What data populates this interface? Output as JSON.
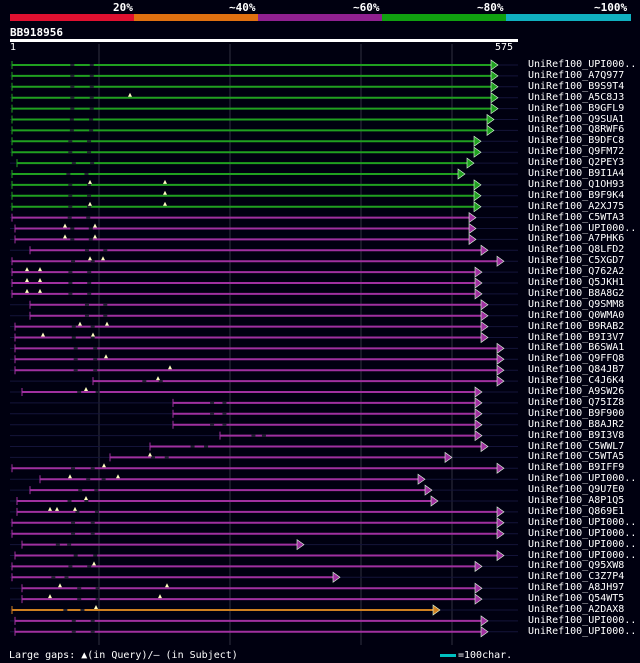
{
  "legend": {
    "labels": [
      "20%",
      "~40%",
      "~60%",
      "~80%",
      "~100%"
    ],
    "colors": [
      "#e01030",
      "#e07010",
      "#902090",
      "#10a010",
      "#10b0c0"
    ]
  },
  "query": {
    "title": "BB918956",
    "start": "1",
    "end": "575"
  },
  "hits": [
    {
      "label": "UniRef100_UPI000..",
      "color": "#20a020",
      "from": 12,
      "to": 498,
      "marks": []
    },
    {
      "label": "UniRef100_A7Q977",
      "color": "#20a020",
      "from": 12,
      "to": 498,
      "marks": []
    },
    {
      "label": "UniRef100_B9S9T4",
      "color": "#20a020",
      "from": 12,
      "to": 498,
      "marks": []
    },
    {
      "label": "UniRef100_A5C8J3",
      "color": "#20a020",
      "from": 12,
      "to": 498,
      "marks": [
        130
      ]
    },
    {
      "label": "UniRef100_B9GFL9",
      "color": "#20a020",
      "from": 12,
      "to": 498,
      "marks": []
    },
    {
      "label": "UniRef100_Q9SUA1",
      "color": "#20a020",
      "from": 12,
      "to": 494,
      "marks": []
    },
    {
      "label": "UniRef100_Q8RWF6",
      "color": "#20a020",
      "from": 12,
      "to": 494,
      "marks": []
    },
    {
      "label": "UniRef100_B9DFC8",
      "color": "#20a020",
      "from": 12,
      "to": 481,
      "marks": []
    },
    {
      "label": "UniRef100_Q9FM72",
      "color": "#20a020",
      "from": 12,
      "to": 481,
      "marks": []
    },
    {
      "label": "UniRef100_Q2PEY3",
      "color": "#20a020",
      "from": 17,
      "to": 474,
      "marks": []
    },
    {
      "label": "UniRef100_B9I1A4",
      "color": "#20a020",
      "from": 12,
      "to": 465,
      "marks": []
    },
    {
      "label": "UniRef100_Q1OH93",
      "color": "#20a020",
      "from": 12,
      "to": 481,
      "marks": [
        90,
        165
      ]
    },
    {
      "label": "UniRef100_B9F9K4",
      "color": "#20a020",
      "from": 12,
      "to": 481,
      "marks": [
        165
      ]
    },
    {
      "label": "UniRef100_A2XJ75",
      "color": "#20a020",
      "from": 12,
      "to": 481,
      "marks": [
        90,
        165
      ]
    },
    {
      "label": "UniRef100_C5WTA3",
      "color": "#a030a0",
      "from": 12,
      "to": 476,
      "marks": []
    },
    {
      "label": "UniRef100_UPI000..",
      "color": "#a030a0",
      "from": 15,
      "to": 476,
      "marks": [
        65,
        95
      ]
    },
    {
      "label": "UniRef100_A7PHK6",
      "color": "#a030a0",
      "from": 15,
      "to": 476,
      "marks": [
        65,
        95
      ]
    },
    {
      "label": "UniRef100_Q8LFD2",
      "color": "#a030a0",
      "from": 30,
      "to": 488,
      "marks": []
    },
    {
      "label": "UniRef100_C5XGD7",
      "color": "#a030a0",
      "from": 12,
      "to": 504,
      "marks": [
        90,
        103
      ]
    },
    {
      "label": "UniRef100_Q762A2",
      "color": "#a030a0",
      "from": 12,
      "to": 482,
      "marks": [
        27,
        40
      ]
    },
    {
      "label": "UniRef100_Q5JKH1",
      "color": "#a030a0",
      "from": 12,
      "to": 482,
      "marks": [
        27,
        40
      ]
    },
    {
      "label": "UniRef100_B8A8G2",
      "color": "#a030a0",
      "from": 12,
      "to": 482,
      "marks": [
        27,
        40
      ]
    },
    {
      "label": "UniRef100_Q9SMM8",
      "color": "#a030a0",
      "from": 30,
      "to": 488,
      "marks": []
    },
    {
      "label": "UniRef100_Q0WMA0",
      "color": "#a030a0",
      "from": 30,
      "to": 488,
      "marks": []
    },
    {
      "label": "UniRef100_B9RAB2",
      "color": "#a030a0",
      "from": 15,
      "to": 488,
      "marks": [
        80,
        107
      ]
    },
    {
      "label": "UniRef100_B9I3V7",
      "color": "#a030a0",
      "from": 15,
      "to": 488,
      "marks": [
        43,
        93
      ]
    },
    {
      "label": "UniRef100_B6SWA1",
      "color": "#a030a0",
      "from": 15,
      "to": 504,
      "marks": []
    },
    {
      "label": "UniRef100_Q9FFQ8",
      "color": "#a030a0",
      "from": 15,
      "to": 504,
      "marks": [
        106
      ]
    },
    {
      "label": "UniRef100_Q84JB7",
      "color": "#a030a0",
      "from": 15,
      "to": 504,
      "marks": [
        170
      ]
    },
    {
      "label": "UniRef100_C4J6K4",
      "color": "#a030a0",
      "from": 93,
      "to": 504,
      "marks": [
        158
      ]
    },
    {
      "label": "UniRef100_A9SW26",
      "color": "#a030a0",
      "from": 22,
      "to": 482,
      "marks": [
        86
      ]
    },
    {
      "label": "UniRef100_Q75IZ8",
      "color": "#a030a0",
      "from": 173,
      "to": 482,
      "marks": []
    },
    {
      "label": "UniRef100_B9F900",
      "color": "#a030a0",
      "from": 173,
      "to": 482,
      "marks": []
    },
    {
      "label": "UniRef100_B8AJR2",
      "color": "#a030a0",
      "from": 173,
      "to": 482,
      "marks": []
    },
    {
      "label": "UniRef100_B9I3V8",
      "color": "#a030a0",
      "from": 220,
      "to": 482,
      "marks": []
    },
    {
      "label": "UniRef100_C5WWL7",
      "color": "#a030a0",
      "from": 150,
      "to": 488,
      "marks": []
    },
    {
      "label": "UniRef100_C5WTA5",
      "color": "#a030a0",
      "from": 110,
      "to": 452,
      "marks": [
        150
      ]
    },
    {
      "label": "UniRef100_B9IFF9",
      "color": "#a030a0",
      "from": 12,
      "to": 504,
      "marks": [
        104
      ]
    },
    {
      "label": "UniRef100_UPI000..",
      "color": "#a030a0",
      "from": 40,
      "to": 425,
      "marks": [
        70,
        118
      ]
    },
    {
      "label": "UniRef100_Q9U7E0",
      "color": "#a030a0",
      "from": 30,
      "to": 432,
      "marks": []
    },
    {
      "label": "UniRef100_A8P1Q5",
      "color": "#a030a0",
      "from": 17,
      "to": 438,
      "marks": [
        86
      ]
    },
    {
      "label": "UniRef100_Q869E1",
      "color": "#a030a0",
      "from": 17,
      "to": 504,
      "marks": [
        50,
        57,
        75
      ]
    },
    {
      "label": "UniRef100_UPI000..",
      "color": "#a030a0",
      "from": 12,
      "to": 504,
      "marks": []
    },
    {
      "label": "UniRef100_UPI000..",
      "color": "#a030a0",
      "from": 12,
      "to": 504,
      "marks": []
    },
    {
      "label": "UniRef100_UPI000..",
      "color": "#a030a0",
      "from": 22,
      "to": 304,
      "marks": []
    },
    {
      "label": "UniRef100_UPI000..",
      "color": "#a030a0",
      "from": 15,
      "to": 504,
      "marks": []
    },
    {
      "label": "UniRef100_Q95XW8",
      "color": "#a030a0",
      "from": 12,
      "to": 482,
      "marks": [
        94
      ]
    },
    {
      "label": "UniRef100_C3Z7P4",
      "color": "#a030a0",
      "from": 12,
      "to": 340,
      "marks": []
    },
    {
      "label": "UniRef100_A8JH97",
      "color": "#a030a0",
      "from": 22,
      "to": 482,
      "marks": [
        60,
        167
      ]
    },
    {
      "label": "UniRef100_Q54WT5",
      "color": "#a030a0",
      "from": 22,
      "to": 482,
      "marks": [
        50,
        160
      ]
    },
    {
      "label": "UniRef100_A2DAX8",
      "color": "#d08020",
      "from": 12,
      "to": 440,
      "marks": [
        96
      ]
    },
    {
      "label": "UniRef100_UPI000..",
      "color": "#a030a0",
      "from": 15,
      "to": 488,
      "marks": []
    },
    {
      "label": "UniRef100_UPI000..",
      "color": "#a030a0",
      "from": 15,
      "to": 488,
      "marks": []
    }
  ],
  "footer": {
    "gaps_text": "Large gaps: ▲(in Query)/– (in Subject)",
    "scale_text": "=100char."
  }
}
